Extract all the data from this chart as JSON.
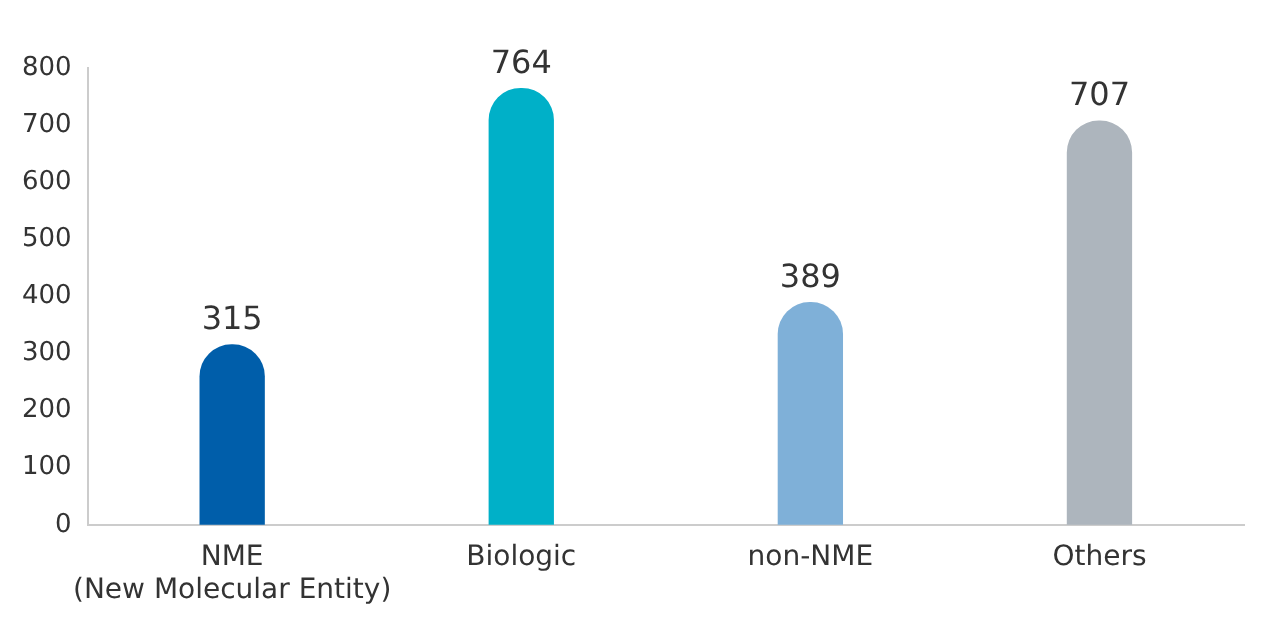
{
  "chart_data": {
    "type": "bar",
    "categories": [
      "NME\n(New Molecular Entity)",
      "Biologic",
      "non-NME",
      "Others"
    ],
    "values": [
      315,
      764,
      389,
      707
    ],
    "colors": [
      "#005eaa",
      "#00b0c8",
      "#7fb0d8",
      "#adb5bd"
    ],
    "ylim": [
      0,
      800
    ],
    "yticks": [
      0,
      100,
      200,
      300,
      400,
      500,
      600,
      700,
      800
    ],
    "grid": false,
    "data_labels": true,
    "legend": false
  }
}
